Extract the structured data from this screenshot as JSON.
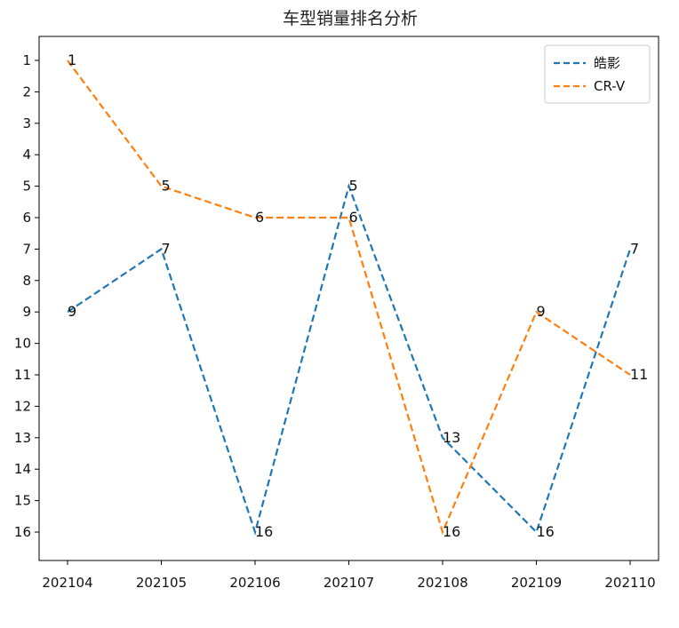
{
  "chart_data": {
    "type": "line",
    "title": "车型销量排名分析",
    "xlabel": "",
    "ylabel": "",
    "categories": [
      "202104",
      "202105",
      "202106",
      "202107",
      "202108",
      "202109",
      "202110"
    ],
    "y_ticks": [
      "1",
      "2",
      "3",
      "4",
      "5",
      "6",
      "7",
      "8",
      "9",
      "10",
      "11",
      "12",
      "13",
      "14",
      "15",
      "16"
    ],
    "ylim": [
      1,
      16
    ],
    "y_inverted": true,
    "grid": false,
    "legend_position": "top-right",
    "line_style": "dashed",
    "series": [
      {
        "name": "皓影",
        "color": "#1f77b4",
        "values": [
          9,
          7,
          16,
          5,
          13,
          16,
          7
        ]
      },
      {
        "name": "CR-V",
        "color": "#ff7f0e",
        "values": [
          1,
          5,
          6,
          6,
          16,
          9,
          11
        ]
      }
    ]
  }
}
